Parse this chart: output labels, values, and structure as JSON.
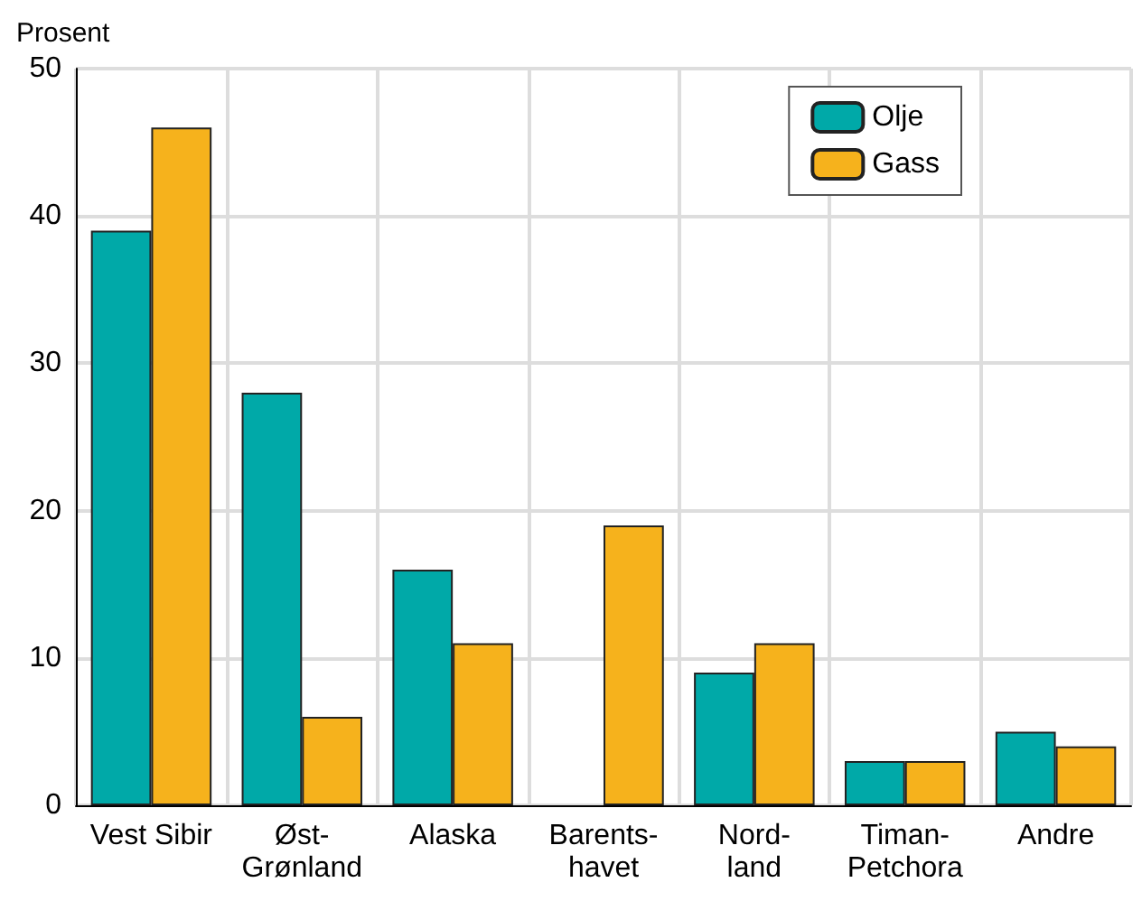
{
  "chart_data": {
    "type": "bar",
    "ylabel": "Prosent",
    "categories": [
      "Vest Sibir",
      "Øst-\nGrønland",
      "Alaska",
      "Barents-\nhavet",
      "Nord-\nland",
      "Timan-\nPetchora",
      "Andre"
    ],
    "series": [
      {
        "name": "Olje",
        "color": "#00a9a8",
        "values": [
          39,
          28,
          16,
          null,
          9,
          3,
          5
        ]
      },
      {
        "name": "Gass",
        "color": "#f6b21c",
        "values": [
          46,
          6,
          11,
          19,
          11,
          3,
          4
        ]
      }
    ],
    "ylim": [
      0,
      50
    ],
    "yticks": [
      0,
      10,
      20,
      30,
      40,
      50
    ],
    "grid": true,
    "legend": "top right"
  }
}
